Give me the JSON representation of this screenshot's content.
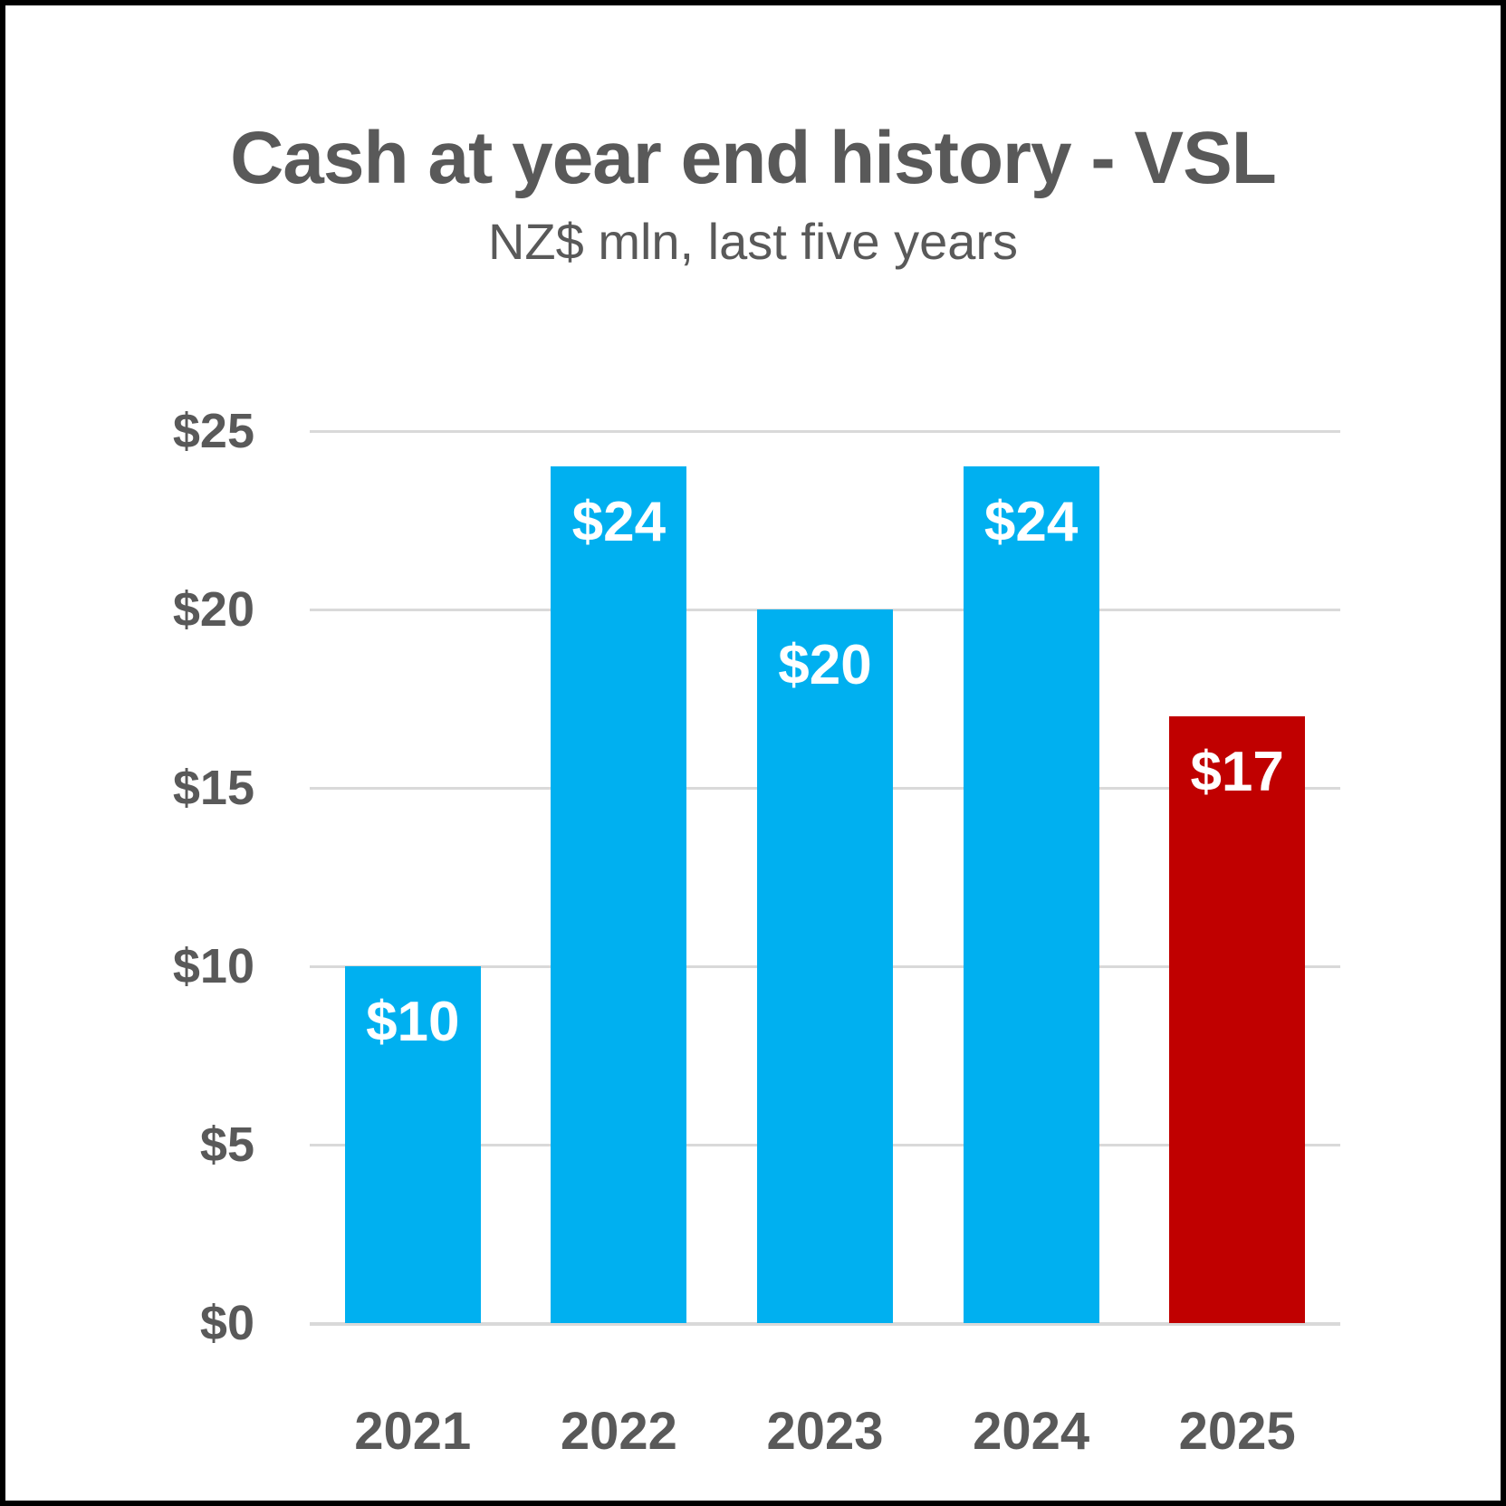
{
  "title": "Cash at year end history - VSL",
  "subtitle": "NZ$ mln, last five years",
  "colors": {
    "bar_default": "#00B0F0",
    "bar_highlight": "#C00000",
    "text": "#595959",
    "gridline": "#D9D9D9",
    "label_on_bar": "#FFFFFF",
    "background": "#FFFFFF",
    "frame": "#000000"
  },
  "chart_data": {
    "type": "bar",
    "title": "Cash at year end history - VSL",
    "subtitle": "NZ$ mln, last five years",
    "categories": [
      "2021",
      "2022",
      "2023",
      "2024",
      "2025"
    ],
    "values": [
      10,
      24,
      20,
      24,
      17
    ],
    "value_labels": [
      "$10",
      "$24",
      "$20",
      "$24",
      "$17"
    ],
    "highlight_index": 4,
    "highlight_category": "2025",
    "ytick_values": [
      0,
      5,
      10,
      15,
      20,
      25
    ],
    "ytick_labels": [
      "$0",
      "$5",
      "$10",
      "$15",
      "$20",
      "$25"
    ],
    "ylim": [
      0,
      25
    ],
    "xlabel": "",
    "ylabel": "",
    "grid": true,
    "legend": false,
    "units": "NZ$ mln"
  }
}
